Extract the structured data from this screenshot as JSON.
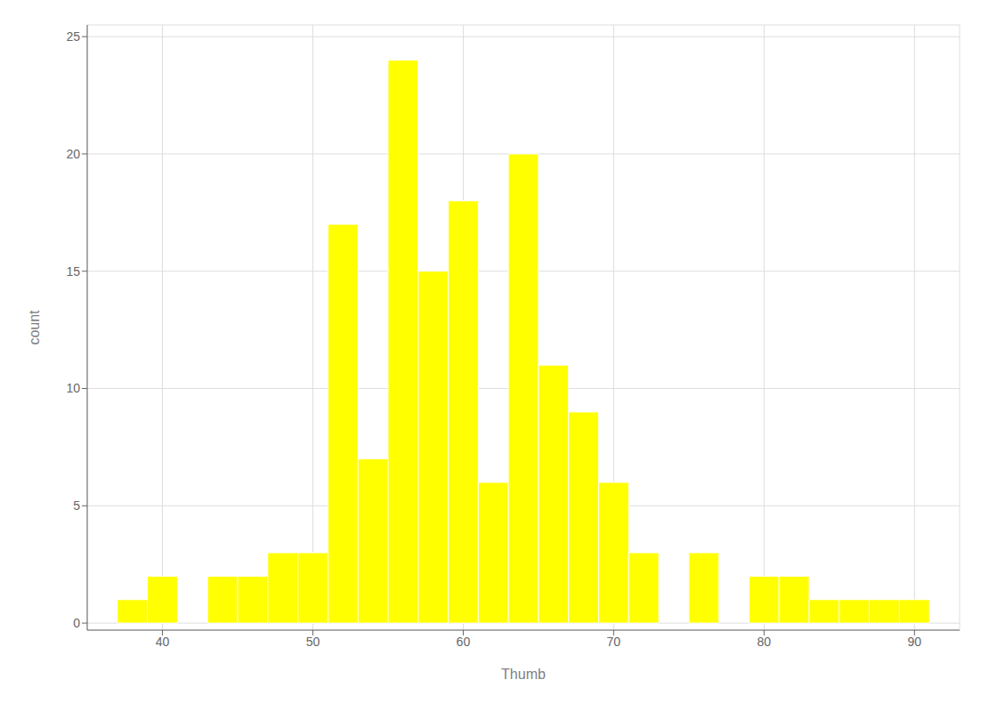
{
  "chart_data": {
    "type": "histogram",
    "title": "",
    "xlabel": "Thumb",
    "ylabel": "count",
    "color": "#FFFF00",
    "bins": [
      37,
      39,
      41,
      43,
      45,
      47,
      49,
      51,
      53,
      55,
      57,
      59,
      61,
      63,
      65,
      67,
      69,
      71,
      73,
      75,
      77,
      79,
      81,
      83,
      85,
      87,
      89,
      91
    ],
    "counts": [
      1,
      2,
      0,
      2,
      2,
      3,
      3,
      17,
      7,
      24,
      15,
      18,
      6,
      20,
      11,
      9,
      6,
      3,
      0,
      3,
      0,
      2,
      2,
      1,
      1,
      1,
      1
    ],
    "xlim": [
      35,
      93
    ],
    "ylim": [
      -0.3,
      25.5
    ],
    "xticks": [
      40,
      50,
      60,
      70,
      80,
      90
    ],
    "yticks": [
      0,
      5,
      10,
      15,
      20,
      25
    ],
    "grid": true
  }
}
